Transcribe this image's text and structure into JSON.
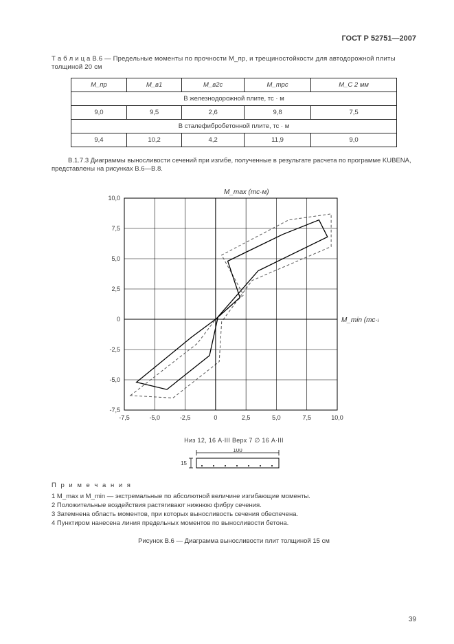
{
  "header": {
    "doc_id": "ГОСТ Р 52751—2007"
  },
  "table": {
    "caption": "Т а б л и ц а  В.6 — Предельные моменты по прочности M_пр, и трещиностойкости для автодорожной плиты толщиной 20 см",
    "headers": [
      "M_пр",
      "M_в1",
      "M_в2с",
      "M_трс",
      "M_С 2 мм"
    ],
    "section1": "В железнодорожной плите, тс · м",
    "row1": [
      "9,0",
      "9,5",
      "2,6",
      "9,8",
      "7,5"
    ],
    "section2": "В сталефибробетонной плите, тс · м",
    "row2": [
      "9,4",
      "10,2",
      "4,2",
      "11,9",
      "9,0"
    ]
  },
  "paragraph": "В.1.7.3 Диаграммы выносливости сечений при изгибе, полученные в результате расчета по программе KUBENA, представлены на рисунках В.6—В.8.",
  "chart": {
    "type": "line",
    "y_label": "M_max (тс·м)",
    "x_label": "M_min (тс·м)",
    "xlim": [
      -7.5,
      10.0
    ],
    "ylim": [
      -7.5,
      10.0
    ],
    "xticks": [
      -7.5,
      -5.0,
      -2.5,
      0,
      2.5,
      5.0,
      7.5,
      10.0
    ],
    "yticks": [
      -7.5,
      -5.0,
      -2.5,
      0,
      2.5,
      5.0,
      7.5,
      10.0
    ],
    "grid_color": "#000000",
    "line_color": "#000000",
    "dash_color": "#555555",
    "background": "#ffffff",
    "solid_poly": [
      [
        -6.5,
        -5.2
      ],
      [
        -2.0,
        -1.5
      ],
      [
        0,
        0
      ],
      [
        2.0,
        1.8
      ],
      [
        1.0,
        4.8
      ],
      [
        5.5,
        7.0
      ],
      [
        8.5,
        8.2
      ],
      [
        9.2,
        6.8
      ],
      [
        3.5,
        4.0
      ],
      [
        0.2,
        0.2
      ],
      [
        -0.5,
        -3.0
      ],
      [
        -4.0,
        -5.8
      ],
      [
        -6.5,
        -5.2
      ]
    ],
    "dash_poly": [
      [
        -7.0,
        -6.3
      ],
      [
        -1.5,
        -2.0
      ],
      [
        0,
        0
      ],
      [
        2.3,
        2.0
      ],
      [
        0.5,
        5.3
      ],
      [
        6.0,
        8.2
      ],
      [
        9.5,
        8.7
      ],
      [
        9.5,
        6.0
      ],
      [
        3.0,
        3.2
      ],
      [
        0.5,
        -0.2
      ],
      [
        0.3,
        -3.5
      ],
      [
        -3.5,
        -6.5
      ],
      [
        -7.0,
        -6.3
      ]
    ]
  },
  "below_chart": "Низ    12, 16 А·III   Верх    7 ∅ 16 А·III",
  "section_dim": {
    "width": "100",
    "height": "15"
  },
  "notes": {
    "title": "П р и м е ч а н и я",
    "n1": "1 M_max и M_min — экстремальные по абсолютной величине изгибающие моменты.",
    "n2": "2 Положительные воздействия растягивают нижнюю фибру сечения.",
    "n3": "3 Затемнена область моментов, при которых выносливость сечения обеспечена.",
    "n4": "4 Пунктиром нанесена линия предельных моментов по выносливости бетона."
  },
  "fig_caption": "Рисунок В.6 — Диаграмма выносливости плит толщиной 15 см",
  "page_number": "39"
}
